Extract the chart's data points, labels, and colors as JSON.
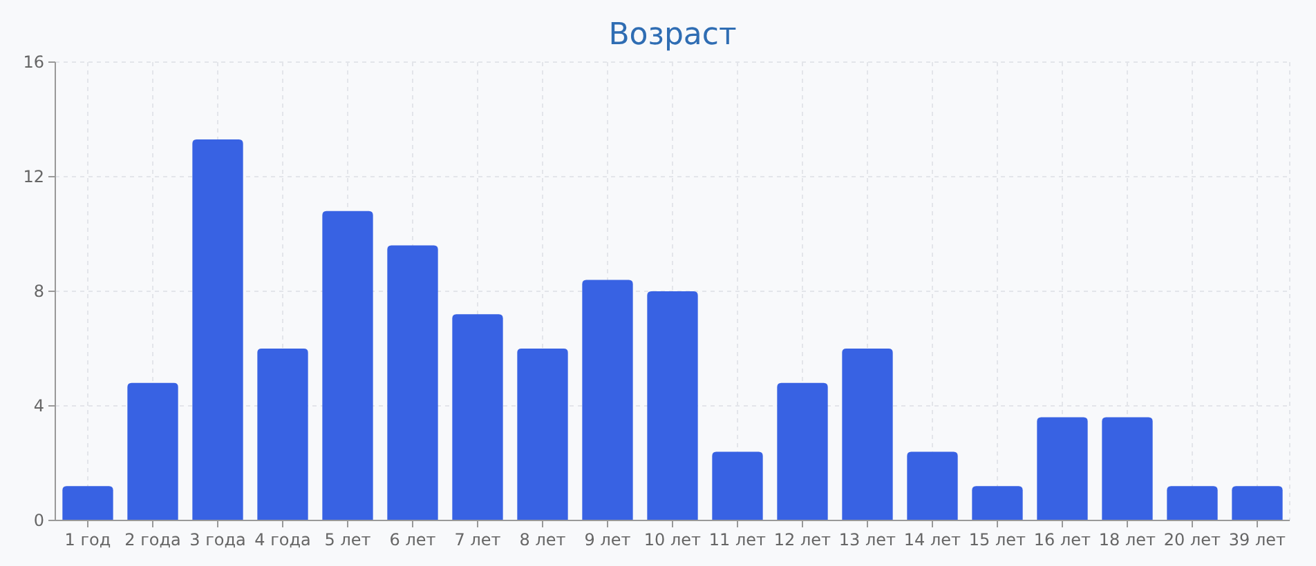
{
  "chart_data": {
    "type": "bar",
    "title": "Возраст",
    "categories": [
      "1 год",
      "2 года",
      "3 года",
      "4 года",
      "5 лет",
      "6 лет",
      "7 лет",
      "8 лет",
      "9 лет",
      "10 лет",
      "11 лет",
      "12 лет",
      "13 лет",
      "14 лет",
      "15 лет",
      "16 лет",
      "18 лет",
      "20 лет",
      "39 лет"
    ],
    "values": [
      1.2,
      4.8,
      13.3,
      6.0,
      10.8,
      9.6,
      7.2,
      6.0,
      8.4,
      8.0,
      2.4,
      4.8,
      6.0,
      2.4,
      1.2,
      3.6,
      3.6,
      1.2,
      1.2
    ],
    "color": "#3862e3",
    "ylim": [
      0,
      16
    ],
    "yticks": [
      0,
      4,
      8,
      12,
      16
    ],
    "grid": true
  }
}
